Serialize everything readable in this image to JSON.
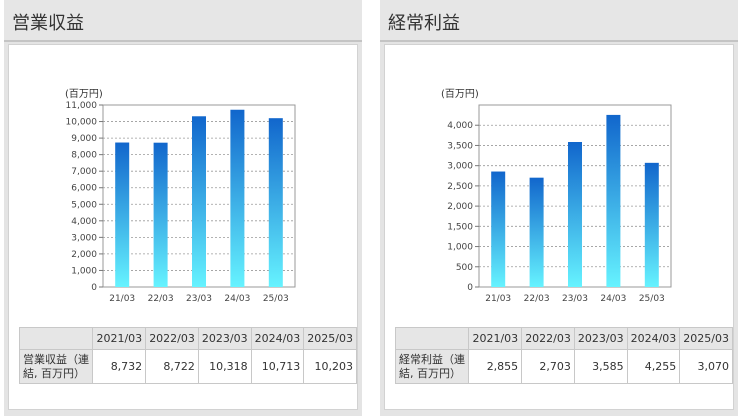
{
  "chart_data": [
    {
      "type": "bar",
      "title": "営業収益",
      "unit_label": "(百万円)",
      "categories": [
        "21/03",
        "22/03",
        "23/03",
        "24/03",
        "25/03"
      ],
      "values": [
        8732,
        8722,
        10318,
        10713,
        10203
      ],
      "ylim": [
        0,
        11000
      ],
      "ytick_step": 1000,
      "yticks": [
        "0",
        "1,000",
        "2,000",
        "3,000",
        "4,000",
        "5,000",
        "6,000",
        "7,000",
        "8,000",
        "9,000",
        "10,000",
        "11,000"
      ],
      "grid": true,
      "table": {
        "headers": [
          "2021/03",
          "2022/03",
          "2023/03",
          "2024/03",
          "2025/03"
        ],
        "row_label": "営業収益（連結, 百万円）",
        "values": [
          "8,732",
          "8,722",
          "10,318",
          "10,713",
          "10,203"
        ]
      }
    },
    {
      "type": "bar",
      "title": "経常利益",
      "unit_label": "(百万円)",
      "categories": [
        "21/03",
        "22/03",
        "23/03",
        "24/03",
        "25/03"
      ],
      "values": [
        2855,
        2703,
        3585,
        4255,
        3070
      ],
      "ylim": [
        0,
        4500
      ],
      "ytick_step": 500,
      "yticks": [
        "0",
        "500",
        "1,000",
        "1,500",
        "2,000",
        "2,500",
        "3,000",
        "3,500",
        "4,000"
      ],
      "grid": true,
      "table": {
        "headers": [
          "2021/03",
          "2022/03",
          "2023/03",
          "2024/03",
          "2025/03"
        ],
        "row_label": "経常利益（連結, 百万円）",
        "values": [
          "2,855",
          "2,703",
          "3,585",
          "4,255",
          "3,070"
        ]
      }
    }
  ],
  "colors": {
    "bar_top": "#1166cc",
    "bar_bottom": "#66f3ff",
    "grid": "#999999",
    "panel_bg": "#e4e4e4"
  }
}
